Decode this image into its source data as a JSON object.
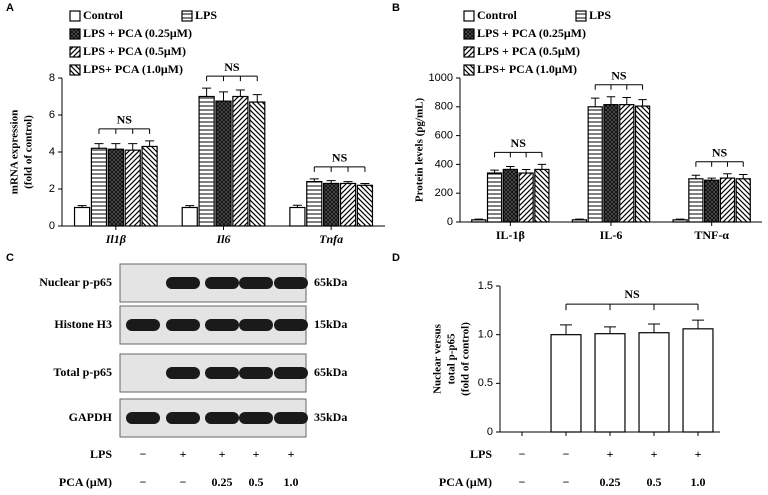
{
  "chart_data": [
    {
      "type": "bar",
      "panel": "A",
      "ylabel": [
        "mRNA expression",
        "(fold of control)"
      ],
      "categories": [
        "Il1β",
        "Il6",
        "Tnfa"
      ],
      "italic_categories": true,
      "ylim": [
        0,
        8
      ],
      "yticks": [
        0,
        2,
        4,
        6,
        8
      ],
      "series": [
        {
          "name": "Control",
          "color": "#000000",
          "pattern": "none",
          "values": [
            1.0,
            1.0,
            1.0
          ],
          "errors": [
            0.1,
            0.1,
            0.12
          ]
        },
        {
          "name": "LPS",
          "color": "#000000",
          "pattern": "horizontal",
          "values": [
            4.2,
            7.0,
            2.4
          ],
          "errors": [
            0.25,
            0.45,
            0.15
          ]
        },
        {
          "name": "LPS + PCA (0.25μM)",
          "color": "#000000",
          "pattern": "cross",
          "values": [
            4.15,
            6.75,
            2.3
          ],
          "errors": [
            0.3,
            0.5,
            0.15
          ]
        },
        {
          "name": "LPS + PCA (0.5μM)",
          "color": "#000000",
          "pattern": "diagonal",
          "values": [
            4.1,
            7.0,
            2.3
          ],
          "errors": [
            0.35,
            0.35,
            0.1
          ]
        },
        {
          "name": "LPS+ PCA (1.0μM)",
          "color": "#000000",
          "pattern": "backdiagonal",
          "values": [
            4.3,
            6.7,
            2.2
          ],
          "errors": [
            0.3,
            0.4,
            0.1
          ]
        }
      ],
      "annotations": [
        "NS",
        "NS",
        "NS"
      ]
    },
    {
      "type": "bar",
      "panel": "B",
      "ylabel": [
        "Protein levels (pg/mL)"
      ],
      "categories": [
        "IL-1β",
        "IL-6",
        "TNF-α"
      ],
      "italic_categories": false,
      "ylim": [
        0,
        1000
      ],
      "yticks": [
        0,
        200,
        400,
        600,
        800,
        1000
      ],
      "series": [
        {
          "name": "Control",
          "color": "#000000",
          "pattern": "none",
          "values": [
            15,
            15,
            15
          ],
          "errors": [
            5,
            5,
            5
          ]
        },
        {
          "name": "LPS",
          "color": "#000000",
          "pattern": "horizontal",
          "values": [
            340,
            800,
            300
          ],
          "errors": [
            20,
            60,
            25
          ]
        },
        {
          "name": "LPS + PCA (0.25μM)",
          "color": "#000000",
          "pattern": "cross",
          "values": [
            365,
            815,
            290
          ],
          "errors": [
            20,
            55,
            15
          ]
        },
        {
          "name": "LPS + PCA (0.5μM)",
          "color": "#000000",
          "pattern": "diagonal",
          "values": [
            340,
            815,
            305
          ],
          "errors": [
            25,
            50,
            30
          ]
        },
        {
          "name": "LPS+ PCA (1.0μM)",
          "color": "#000000",
          "pattern": "backdiagonal",
          "values": [
            365,
            805,
            300
          ],
          "errors": [
            35,
            45,
            30
          ]
        }
      ],
      "annotations": [
        "NS",
        "NS",
        "NS"
      ]
    },
    {
      "type": "bar",
      "panel": "D",
      "ylabel": [
        "Nuclear versus",
        "total p-p65",
        "(fold  of control)"
      ],
      "categories": [
        null,
        null,
        null,
        null,
        null
      ],
      "color": "#000000",
      "values": [
        null,
        1.0,
        1.01,
        1.02,
        1.06
      ],
      "errors": [
        null,
        0.1,
        0.07,
        0.09,
        0.09
      ],
      "ylim": [
        0,
        1.5
      ],
      "yticks": [
        0,
        0.5,
        {
          "value": 1,
          "label": "1.0"
        },
        1.5
      ],
      "annotations": [
        "NS"
      ],
      "conditions": [
        {
          "label": "LPS",
          "values": [
            "−",
            "−",
            "+",
            "+",
            "+"
          ]
        },
        {
          "label": "PCA (μM)",
          "values": [
            "−",
            "−",
            "0.25",
            "0.5",
            "1.0"
          ]
        }
      ]
    }
  ],
  "blot": {
    "panel": "C",
    "rows": [
      {
        "label": "Nuclear p-p65",
        "size": "65kDa"
      },
      {
        "label": "Histone H3",
        "size": "15kDa"
      },
      {
        "label": "Total p-p65",
        "size": "65kDa"
      },
      {
        "label": "GAPDH",
        "size": "35kDa"
      }
    ],
    "conditions": [
      {
        "label": "LPS",
        "values": [
          "−",
          "+",
          "+",
          "+",
          "+"
        ]
      },
      {
        "label": "PCA (μM)",
        "values": [
          "−",
          "−",
          "0.25",
          "0.5",
          "1.0"
        ]
      }
    ]
  }
}
